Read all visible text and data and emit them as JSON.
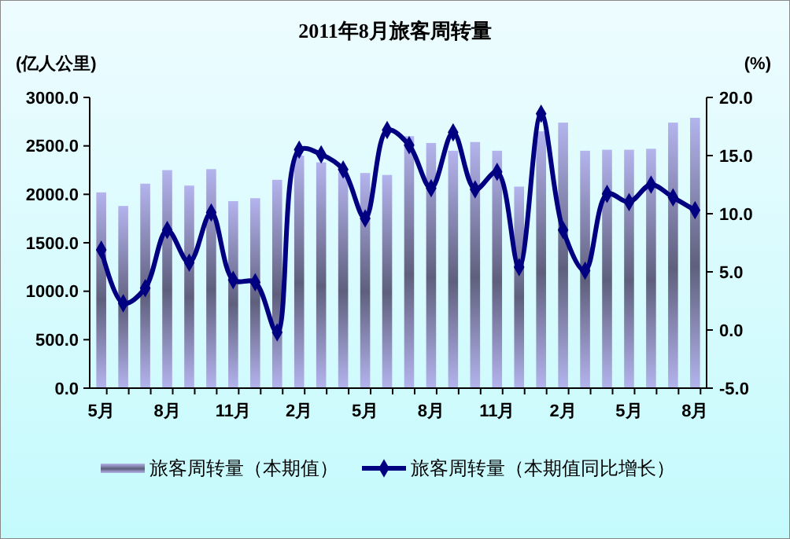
{
  "chart_data": {
    "type": "bar",
    "title": "2011年8月旅客周转量",
    "ylabel": "(亿人公里)",
    "y2label": "(%)",
    "categories": [
      "5月",
      null,
      null,
      "8月",
      null,
      null,
      "11月",
      null,
      null,
      "2月",
      null,
      null,
      "5月",
      null,
      null,
      "8月",
      null,
      null,
      "11月",
      null,
      null,
      "2月",
      null,
      null,
      "5月",
      null,
      null,
      "8月"
    ],
    "series": [
      {
        "name": "旅客周转量（本期值）",
        "color": "#b4b4ee",
        "values": [
          2020,
          1880,
          2110,
          2250,
          2090,
          2260,
          1930,
          1960,
          2150,
          2400,
          2330,
          2230,
          2220,
          2200,
          2600,
          2530,
          2450,
          2540,
          2450,
          2080,
          2650,
          2740,
          2450,
          2460,
          2460,
          2470,
          2740,
          2790
        ]
      },
      {
        "name": "旅客周转量（本期值同比增长）",
        "type": "line",
        "axis": "y2",
        "color": "#000080",
        "marker": "diamond",
        "values": [
          6.9,
          2.3,
          3.6,
          8.6,
          5.8,
          10.1,
          4.3,
          4.1,
          -0.2,
          15.5,
          15.1,
          13.8,
          9.6,
          17.2,
          15.9,
          12.2,
          17.0,
          12.1,
          13.6,
          5.4,
          18.6,
          8.6,
          5.1,
          11.7,
          11.0,
          12.5,
          11.4,
          10.3
        ]
      }
    ],
    "ylim": [
      0,
      3000
    ],
    "yticks": [
      {
        "value": 0,
        "label": "0.0"
      },
      {
        "value": 500,
        "label": "500.0"
      },
      {
        "value": 1000,
        "label": "1000.0"
      },
      {
        "value": 1500,
        "label": "1500.0"
      },
      {
        "value": 2000,
        "label": "2000.0"
      },
      {
        "value": 2500,
        "label": "2500.0"
      },
      {
        "value": 3000,
        "label": "3000.0"
      }
    ],
    "y2lim": [
      -5,
      20
    ],
    "y2ticks": [
      {
        "value": -5,
        "label": "-5.0"
      },
      {
        "value": 0,
        "label": "0.0"
      },
      {
        "value": 5,
        "label": "5.0"
      },
      {
        "value": 10,
        "label": "10.0"
      },
      {
        "value": 15,
        "label": "15.0"
      },
      {
        "value": 20,
        "label": "20.0"
      }
    ],
    "grid": false,
    "legend": "bottom"
  }
}
